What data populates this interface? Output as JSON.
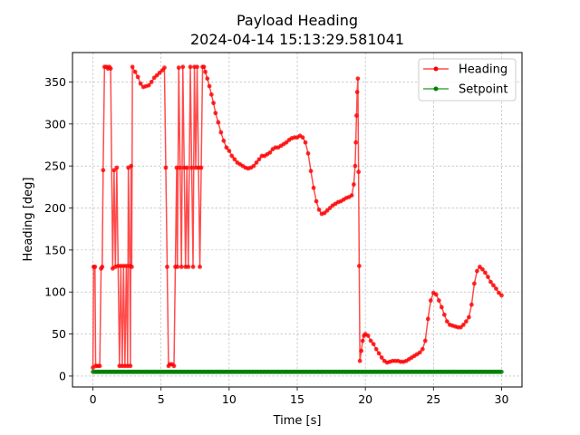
{
  "chart_data": {
    "type": "line",
    "title": "Payload Heading",
    "subtitle": "2024-04-14 15:13:29.581041",
    "xlabel": "Time [s]",
    "ylabel": "Heading [deg]",
    "xlim": [
      -1.5,
      31.5
    ],
    "ylim": [
      -13,
      385
    ],
    "xticks": [
      0,
      5,
      10,
      15,
      20,
      25,
      30
    ],
    "yticks": [
      0,
      50,
      100,
      150,
      200,
      250,
      300,
      350
    ],
    "grid": true,
    "legend_position": "top-right",
    "series": [
      {
        "name": "Heading",
        "color": "#ff0000",
        "marker": "circle",
        "points": [
          [
            0.0,
            10
          ],
          [
            0.05,
            130
          ],
          [
            0.15,
            130
          ],
          [
            0.2,
            12
          ],
          [
            0.35,
            12
          ],
          [
            0.5,
            12
          ],
          [
            0.6,
            128
          ],
          [
            0.68,
            130
          ],
          [
            0.75,
            245
          ],
          [
            0.85,
            368
          ],
          [
            1.0,
            368
          ],
          [
            1.1,
            366
          ],
          [
            1.2,
            368
          ],
          [
            1.3,
            366
          ],
          [
            1.45,
            128
          ],
          [
            1.55,
            245
          ],
          [
            1.65,
            130
          ],
          [
            1.75,
            248
          ],
          [
            1.85,
            131
          ],
          [
            1.95,
            12
          ],
          [
            2.05,
            131
          ],
          [
            2.15,
            12
          ],
          [
            2.25,
            131
          ],
          [
            2.35,
            12
          ],
          [
            2.45,
            131
          ],
          [
            2.55,
            12
          ],
          [
            2.6,
            248
          ],
          [
            2.7,
            131
          ],
          [
            2.75,
            12
          ],
          [
            2.8,
            250
          ],
          [
            2.85,
            130
          ],
          [
            2.9,
            368
          ],
          [
            3.1,
            362
          ],
          [
            3.3,
            356
          ],
          [
            3.5,
            348
          ],
          [
            3.7,
            344
          ],
          [
            3.9,
            345
          ],
          [
            4.1,
            346
          ],
          [
            4.3,
            350
          ],
          [
            4.5,
            355
          ],
          [
            4.7,
            358
          ],
          [
            4.9,
            361
          ],
          [
            5.1,
            364
          ],
          [
            5.25,
            367
          ],
          [
            5.35,
            248
          ],
          [
            5.45,
            130
          ],
          [
            5.55,
            12
          ],
          [
            5.65,
            14
          ],
          [
            5.8,
            14
          ],
          [
            5.95,
            12
          ],
          [
            6.05,
            130
          ],
          [
            6.15,
            248
          ],
          [
            6.2,
            130
          ],
          [
            6.3,
            367
          ],
          [
            6.4,
            248
          ],
          [
            6.5,
            130
          ],
          [
            6.6,
            368
          ],
          [
            6.7,
            248
          ],
          [
            6.8,
            130
          ],
          [
            6.9,
            248
          ],
          [
            7.0,
            130
          ],
          [
            7.15,
            368
          ],
          [
            7.25,
            248
          ],
          [
            7.35,
            130
          ],
          [
            7.45,
            368
          ],
          [
            7.55,
            248
          ],
          [
            7.65,
            368
          ],
          [
            7.75,
            248
          ],
          [
            7.85,
            130
          ],
          [
            7.95,
            248
          ],
          [
            8.05,
            368
          ],
          [
            8.15,
            368
          ],
          [
            8.25,
            362
          ],
          [
            8.4,
            354
          ],
          [
            8.55,
            345
          ],
          [
            8.7,
            335
          ],
          [
            8.85,
            325
          ],
          [
            9.0,
            313
          ],
          [
            9.2,
            302
          ],
          [
            9.4,
            290
          ],
          [
            9.6,
            280
          ],
          [
            9.8,
            272
          ],
          [
            10.0,
            268
          ],
          [
            10.2,
            262
          ],
          [
            10.4,
            258
          ],
          [
            10.6,
            254
          ],
          [
            10.8,
            252
          ],
          [
            11.0,
            250
          ],
          [
            11.2,
            248
          ],
          [
            11.4,
            247
          ],
          [
            11.6,
            248
          ],
          [
            11.8,
            250
          ],
          [
            12.0,
            254
          ],
          [
            12.2,
            258
          ],
          [
            12.4,
            262
          ],
          [
            12.6,
            262
          ],
          [
            12.8,
            264
          ],
          [
            13.0,
            266
          ],
          [
            13.2,
            270
          ],
          [
            13.4,
            272
          ],
          [
            13.6,
            272
          ],
          [
            13.8,
            274
          ],
          [
            14.0,
            276
          ],
          [
            14.2,
            278
          ],
          [
            14.4,
            281
          ],
          [
            14.6,
            283
          ],
          [
            14.8,
            284
          ],
          [
            15.0,
            284
          ],
          [
            15.2,
            286
          ],
          [
            15.4,
            284
          ],
          [
            15.6,
            278
          ],
          [
            15.8,
            265
          ],
          [
            16.0,
            244
          ],
          [
            16.2,
            224
          ],
          [
            16.4,
            208
          ],
          [
            16.6,
            198
          ],
          [
            16.8,
            193
          ],
          [
            17.0,
            194
          ],
          [
            17.2,
            197
          ],
          [
            17.4,
            200
          ],
          [
            17.6,
            203
          ],
          [
            17.8,
            205
          ],
          [
            18.0,
            207
          ],
          [
            18.2,
            208
          ],
          [
            18.4,
            210
          ],
          [
            18.6,
            212
          ],
          [
            18.8,
            213
          ],
          [
            19.0,
            215
          ],
          [
            19.15,
            228
          ],
          [
            19.25,
            250
          ],
          [
            19.3,
            278
          ],
          [
            19.35,
            310
          ],
          [
            19.4,
            338
          ],
          [
            19.45,
            354
          ],
          [
            19.5,
            243
          ],
          [
            19.55,
            131
          ],
          [
            19.6,
            18
          ],
          [
            19.7,
            30
          ],
          [
            19.8,
            42
          ],
          [
            19.9,
            48
          ],
          [
            20.0,
            50
          ],
          [
            20.2,
            48
          ],
          [
            20.4,
            42
          ],
          [
            20.6,
            38
          ],
          [
            20.8,
            32
          ],
          [
            21.0,
            27
          ],
          [
            21.2,
            22
          ],
          [
            21.4,
            18
          ],
          [
            21.6,
            16
          ],
          [
            21.8,
            17
          ],
          [
            22.0,
            18
          ],
          [
            22.2,
            18
          ],
          [
            22.4,
            18
          ],
          [
            22.6,
            17
          ],
          [
            22.8,
            17
          ],
          [
            23.0,
            18
          ],
          [
            23.2,
            20
          ],
          [
            23.4,
            22
          ],
          [
            23.6,
            24
          ],
          [
            23.8,
            26
          ],
          [
            24.0,
            28
          ],
          [
            24.2,
            32
          ],
          [
            24.4,
            42
          ],
          [
            24.6,
            68
          ],
          [
            24.8,
            90
          ],
          [
            25.0,
            99
          ],
          [
            25.2,
            97
          ],
          [
            25.4,
            90
          ],
          [
            25.6,
            82
          ],
          [
            25.8,
            73
          ],
          [
            26.0,
            65
          ],
          [
            26.2,
            61
          ],
          [
            26.4,
            60
          ],
          [
            26.6,
            59
          ],
          [
            26.8,
            58
          ],
          [
            27.0,
            58
          ],
          [
            27.2,
            61
          ],
          [
            27.4,
            65
          ],
          [
            27.6,
            70
          ],
          [
            27.8,
            85
          ],
          [
            28.0,
            110
          ],
          [
            28.2,
            125
          ],
          [
            28.4,
            130
          ],
          [
            28.6,
            127
          ],
          [
            28.8,
            123
          ],
          [
            29.0,
            118
          ],
          [
            29.2,
            112
          ],
          [
            29.4,
            108
          ],
          [
            29.6,
            104
          ],
          [
            29.8,
            99
          ],
          [
            30.0,
            96
          ]
        ]
      },
      {
        "name": "Setpoint",
        "color": "#008000",
        "marker": "circle",
        "constant": 5,
        "x_start": 0,
        "x_end": 30,
        "x_step": 0.1
      }
    ]
  }
}
